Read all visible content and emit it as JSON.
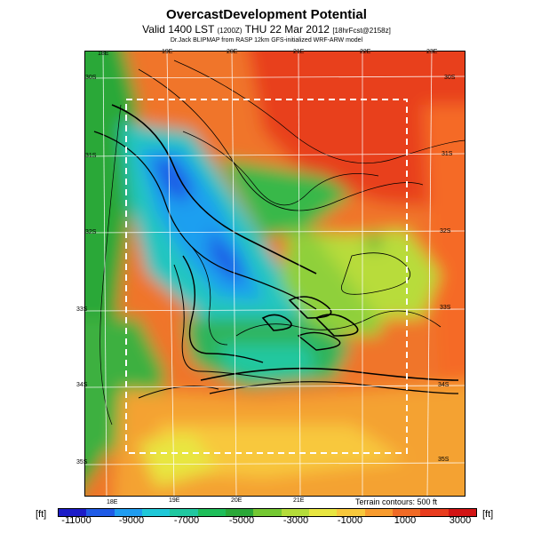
{
  "title": "OvercastDevelopment Potential",
  "subtitle_main": "Valid 1400 LST",
  "subtitle_run": "(1200Z)",
  "subtitle_date": "THU 22 Mar 2012",
  "subtitle_id": "[18hrFcst@2158z]",
  "credit": "Dr.Jack BLIPMAP from RASP 12km GFS-initialized WRF-ARW model",
  "contour_note": "Terrain contours: 500 ft",
  "unit_left": "[ft]",
  "unit_right": "[ft]",
  "lon_top": [
    "18E",
    "19E",
    "20E",
    "21E",
    "22E",
    "23E"
  ],
  "lon_bottom": [
    "18E",
    "19E",
    "20E",
    "21E"
  ],
  "lat_left": [
    "30S",
    "31S",
    "32S",
    "33S",
    "34S",
    "35S"
  ],
  "lat_right": [
    "30S",
    "31S",
    "32S",
    "33S",
    "34S",
    "35S"
  ],
  "colorbar_ticks": [
    "-11000",
    "-9000",
    "-7000",
    "-5000",
    "-3000",
    "-1000",
    "1000",
    "3000"
  ],
  "colorbar_colors": [
    "#1c1cc8",
    "#1f5be6",
    "#1f9cf0",
    "#20c8d8",
    "#20c8a0",
    "#1fbe5a",
    "#2aa838",
    "#74c832",
    "#b4dc3a",
    "#e8e641",
    "#f8c83c",
    "#f89b2e",
    "#f06a25",
    "#e83c1e",
    "#d21414"
  ]
}
